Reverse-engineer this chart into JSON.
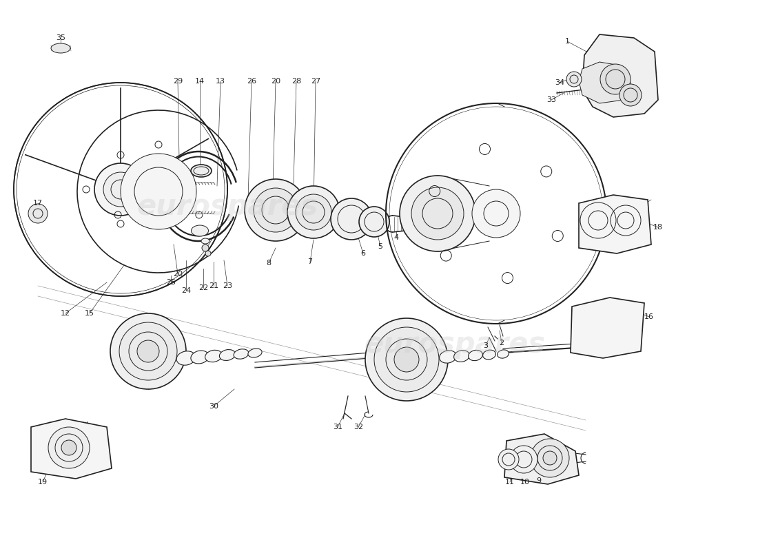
{
  "background_color": "#ffffff",
  "line_color": "#222222",
  "lw_main": 1.2,
  "lw_thin": 0.7,
  "lw_hair": 0.4,
  "watermark_text": "eurospares",
  "watermark_color": "#cccccc",
  "fig_w": 11.0,
  "fig_h": 8.0,
  "dpi": 100
}
